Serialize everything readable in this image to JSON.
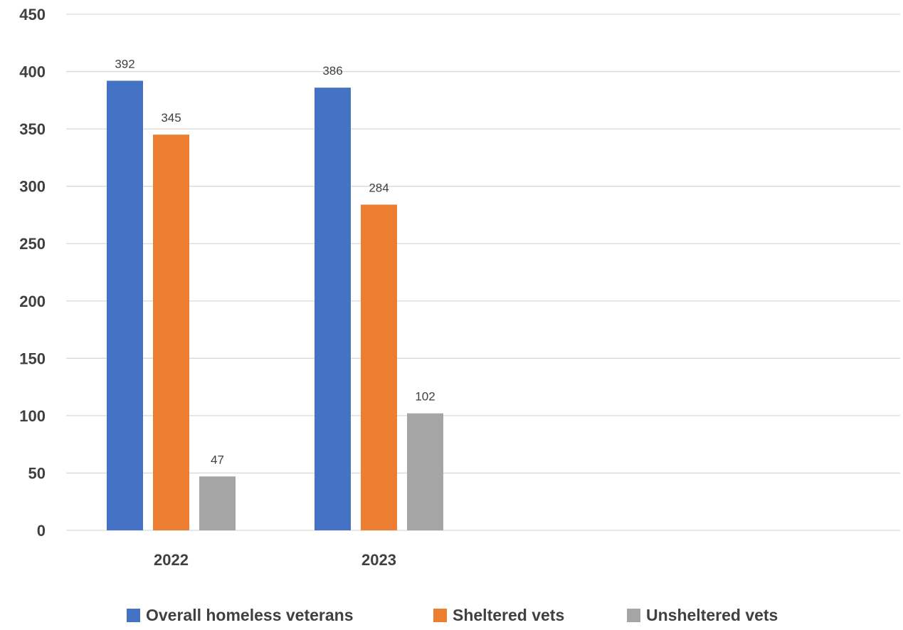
{
  "chart_data": {
    "type": "bar",
    "categories": [
      "2022",
      "2023"
    ],
    "series": [
      {
        "name": "Overall homeless veterans",
        "values": [
          392,
          386
        ],
        "color": "#4472c4"
      },
      {
        "name": "Sheltered vets",
        "values": [
          345,
          284
        ],
        "color": "#ed7d31"
      },
      {
        "name": "Unsheltered vets",
        "values": [
          47,
          102
        ],
        "color": "#a5a5a5"
      }
    ],
    "ylim": [
      0,
      450
    ],
    "yticks": [
      0,
      50,
      100,
      150,
      200,
      250,
      300,
      350,
      400,
      450
    ],
    "grid": true,
    "legend_position": "bottom",
    "title": "",
    "xlabel": "",
    "ylabel": ""
  }
}
